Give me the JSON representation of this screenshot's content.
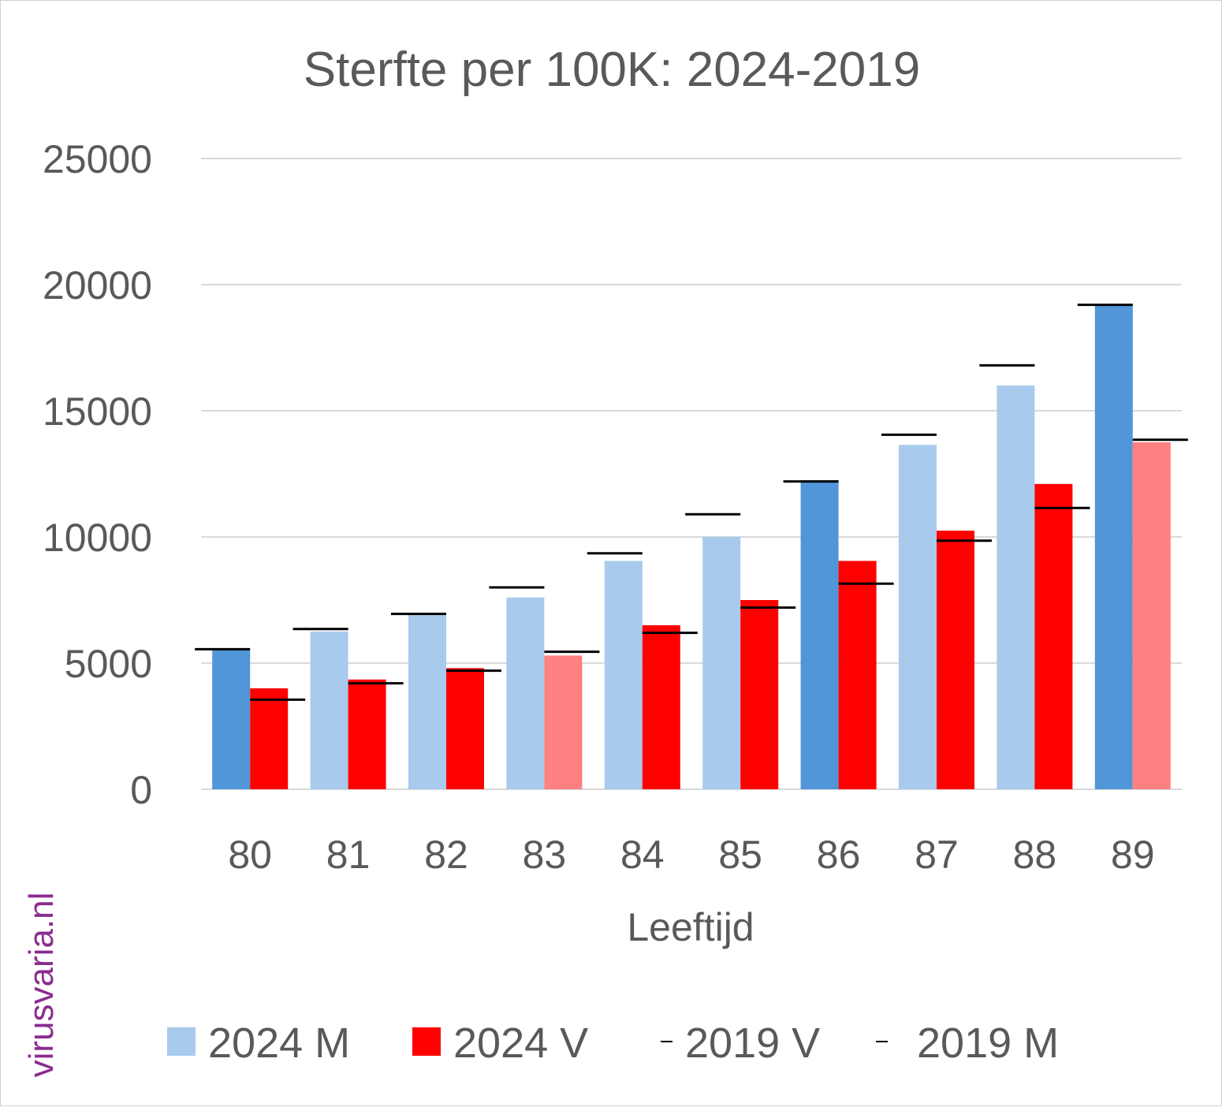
{
  "watermark": "virusvaria.nl",
  "colors": {
    "male_2024": "#a8caec",
    "male_2024_highlight": "#5096d8",
    "female_2024": "#ff0000",
    "female_2024_highlight": "#ff8080",
    "baseline_2019": "#000000",
    "grid": "#d9d9d9",
    "text": "#595959"
  },
  "chart_data": {
    "type": "bar",
    "title": "Sterfte per 100K: 2024-2019",
    "xlabel": "Leeftijd",
    "ylabel": "",
    "ylim": [
      0,
      25000
    ],
    "yticks": [
      0,
      5000,
      10000,
      15000,
      20000,
      25000
    ],
    "grid": true,
    "legend_position": "bottom",
    "categories": [
      "80",
      "81",
      "82",
      "83",
      "84",
      "85",
      "86",
      "87",
      "88",
      "89"
    ],
    "series": [
      {
        "name": "2024 M",
        "kind": "bar",
        "values": [
          5550,
          6250,
          6900,
          7600,
          9050,
          10000,
          12250,
          13650,
          16000,
          19200
        ],
        "highlighted": [
          true,
          false,
          false,
          false,
          false,
          false,
          true,
          false,
          false,
          true
        ]
      },
      {
        "name": "2024 V",
        "kind": "bar",
        "values": [
          4000,
          4350,
          4800,
          5300,
          6500,
          7500,
          9050,
          10250,
          12100,
          13750
        ],
        "highlighted": [
          false,
          false,
          false,
          true,
          false,
          false,
          false,
          false,
          false,
          true
        ]
      },
      {
        "name": "2019 V",
        "kind": "marker",
        "values": [
          3550,
          4200,
          4700,
          5450,
          6200,
          7200,
          8150,
          9850,
          11150,
          13850
        ]
      },
      {
        "name": "2019 M",
        "kind": "marker",
        "values": [
          5550,
          6350,
          6950,
          8000,
          9350,
          10900,
          12200,
          14050,
          16800,
          19200
        ]
      }
    ]
  }
}
